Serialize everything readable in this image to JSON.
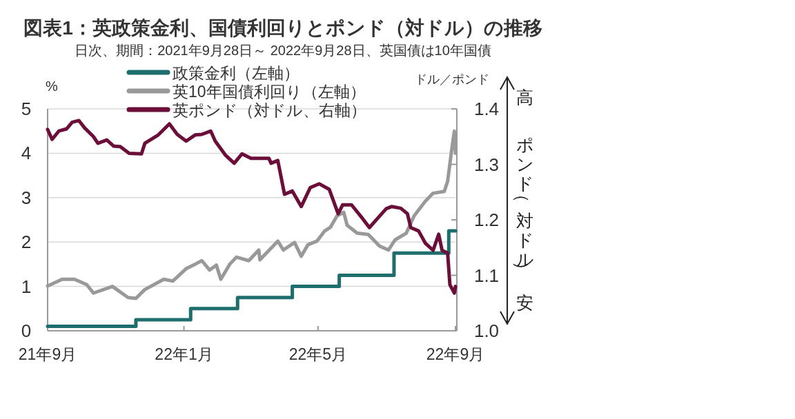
{
  "chart_data": {
    "type": "line",
    "title": "図表1：英政策金利、国債利回りとポンド（対ドル）の推移",
    "subtitle": "日次、期間：2021年9月28日～ 2022年9月28日、英国債は10年国債",
    "ylabel": "%",
    "y2label": "ドル／ポンド",
    "annotations": [
      "高",
      "ポンド（対ドル）",
      "安"
    ],
    "xlim": [
      "2021-09-28",
      "2022-09-28"
    ],
    "xticks": [
      {
        "value": "2021-09-28",
        "label": "21年9月"
      },
      {
        "value": "2022-01-28",
        "label": "22年1月"
      },
      {
        "value": "2022-05-28",
        "label": "22年5月"
      },
      {
        "value": "2022-09-28",
        "label": "22年9月"
      }
    ],
    "ylim": [
      0,
      5
    ],
    "yticks": [
      0,
      1,
      2,
      3,
      4,
      5
    ],
    "y2lim": [
      1.0,
      1.4
    ],
    "y2ticks": [
      {
        "value": 1.0,
        "label": "1.0"
      },
      1.1,
      1.2,
      1.3,
      1.4
    ],
    "grid": "y",
    "legend": "top",
    "series": [
      {
        "name": "政策金利（左軸）",
        "color": "#1f6e6e",
        "type": "step",
        "x": [
          "2021-09-28",
          "2021-12-16",
          "2022-02-03",
          "2022-03-17",
          "2022-05-05",
          "2022-06-16",
          "2022-08-04",
          "2022-09-22",
          "2022-09-28"
        ],
        "values": [
          0.1,
          0.25,
          0.5,
          0.75,
          1.0,
          1.25,
          1.75,
          2.25,
          2.25
        ]
      },
      {
        "name": "英10年国債利回り（左軸）",
        "color": "#999999",
        "x": [
          "2021-09-28",
          "2021-10-11",
          "2021-10-22",
          "2021-11-02",
          "2021-11-08",
          "2021-11-25",
          "2021-12-09",
          "2021-12-16",
          "2021-12-24",
          "2022-01-10",
          "2022-01-18",
          "2022-01-30",
          "2022-02-07",
          "2022-02-13",
          "2022-02-20",
          "2022-02-26",
          "2022-03-02",
          "2022-03-10",
          "2022-03-16",
          "2022-03-27",
          "2022-04-05",
          "2022-04-06",
          "2022-04-22",
          "2022-04-27",
          "2022-05-07",
          "2022-05-13",
          "2022-05-19",
          "2022-05-27",
          "2022-06-03",
          "2022-06-08",
          "2022-06-14",
          "2022-06-20",
          "2022-06-23",
          "2022-07-02",
          "2022-07-12",
          "2022-07-22",
          "2022-07-30",
          "2022-08-05",
          "2022-08-15",
          "2022-08-22",
          "2022-09-01",
          "2022-09-08",
          "2022-09-18",
          "2022-09-21",
          "2022-09-25",
          "2022-09-27",
          "2022-09-28"
        ],
        "values": [
          1.01,
          1.16,
          1.16,
          1.04,
          0.85,
          1.0,
          0.75,
          0.73,
          0.93,
          1.16,
          1.12,
          1.4,
          1.5,
          1.58,
          1.37,
          1.48,
          1.16,
          1.5,
          1.66,
          1.58,
          1.82,
          1.6,
          2.02,
          1.82,
          1.99,
          1.68,
          1.94,
          2.02,
          2.25,
          2.33,
          2.59,
          2.67,
          2.38,
          2.2,
          2.17,
          1.91,
          1.82,
          2.05,
          2.2,
          2.59,
          2.92,
          3.1,
          3.14,
          3.37,
          4.15,
          4.5,
          4.0
        ]
      },
      {
        "name": "英ポンド（対ドル、右軸）",
        "color": "#6b0f3a",
        "axis": "y2",
        "x": [
          "2021-09-28",
          "2021-10-02",
          "2021-10-08",
          "2021-10-15",
          "2021-10-20",
          "2021-10-26",
          "2021-10-31",
          "2021-11-08",
          "2021-11-12",
          "2021-11-20",
          "2021-11-26",
          "2021-12-02",
          "2021-12-10",
          "2021-12-21",
          "2021-12-24",
          "2022-01-05",
          "2022-01-15",
          "2022-01-22",
          "2022-01-30",
          "2022-02-07",
          "2022-02-13",
          "2022-02-21",
          "2022-02-25",
          "2022-03-06",
          "2022-03-14",
          "2022-03-21",
          "2022-03-29",
          "2022-04-06",
          "2022-04-14",
          "2022-04-16",
          "2022-04-22",
          "2022-04-28",
          "2022-05-05",
          "2022-05-13",
          "2022-05-21",
          "2022-05-29",
          "2022-06-07",
          "2022-06-15",
          "2022-06-19",
          "2022-06-27",
          "2022-07-07",
          "2022-07-13",
          "2022-07-20",
          "2022-07-28",
          "2022-08-02",
          "2022-08-10",
          "2022-08-16",
          "2022-08-19",
          "2022-08-26",
          "2022-09-01",
          "2022-09-08",
          "2022-09-13",
          "2022-09-16",
          "2022-09-21",
          "2022-09-23",
          "2022-09-27",
          "2022-09-28"
        ],
        "values": [
          1.363,
          1.345,
          1.36,
          1.364,
          1.376,
          1.379,
          1.366,
          1.35,
          1.338,
          1.344,
          1.333,
          1.332,
          1.32,
          1.319,
          1.338,
          1.353,
          1.373,
          1.354,
          1.342,
          1.353,
          1.354,
          1.36,
          1.342,
          1.317,
          1.302,
          1.319,
          1.311,
          1.311,
          1.311,
          1.302,
          1.307,
          1.246,
          1.252,
          1.224,
          1.258,
          1.265,
          1.255,
          1.211,
          1.227,
          1.227,
          1.202,
          1.186,
          1.202,
          1.22,
          1.224,
          1.221,
          1.211,
          1.186,
          1.18,
          1.158,
          1.145,
          1.174,
          1.145,
          1.14,
          1.083,
          1.068,
          1.08
        ]
      }
    ]
  }
}
